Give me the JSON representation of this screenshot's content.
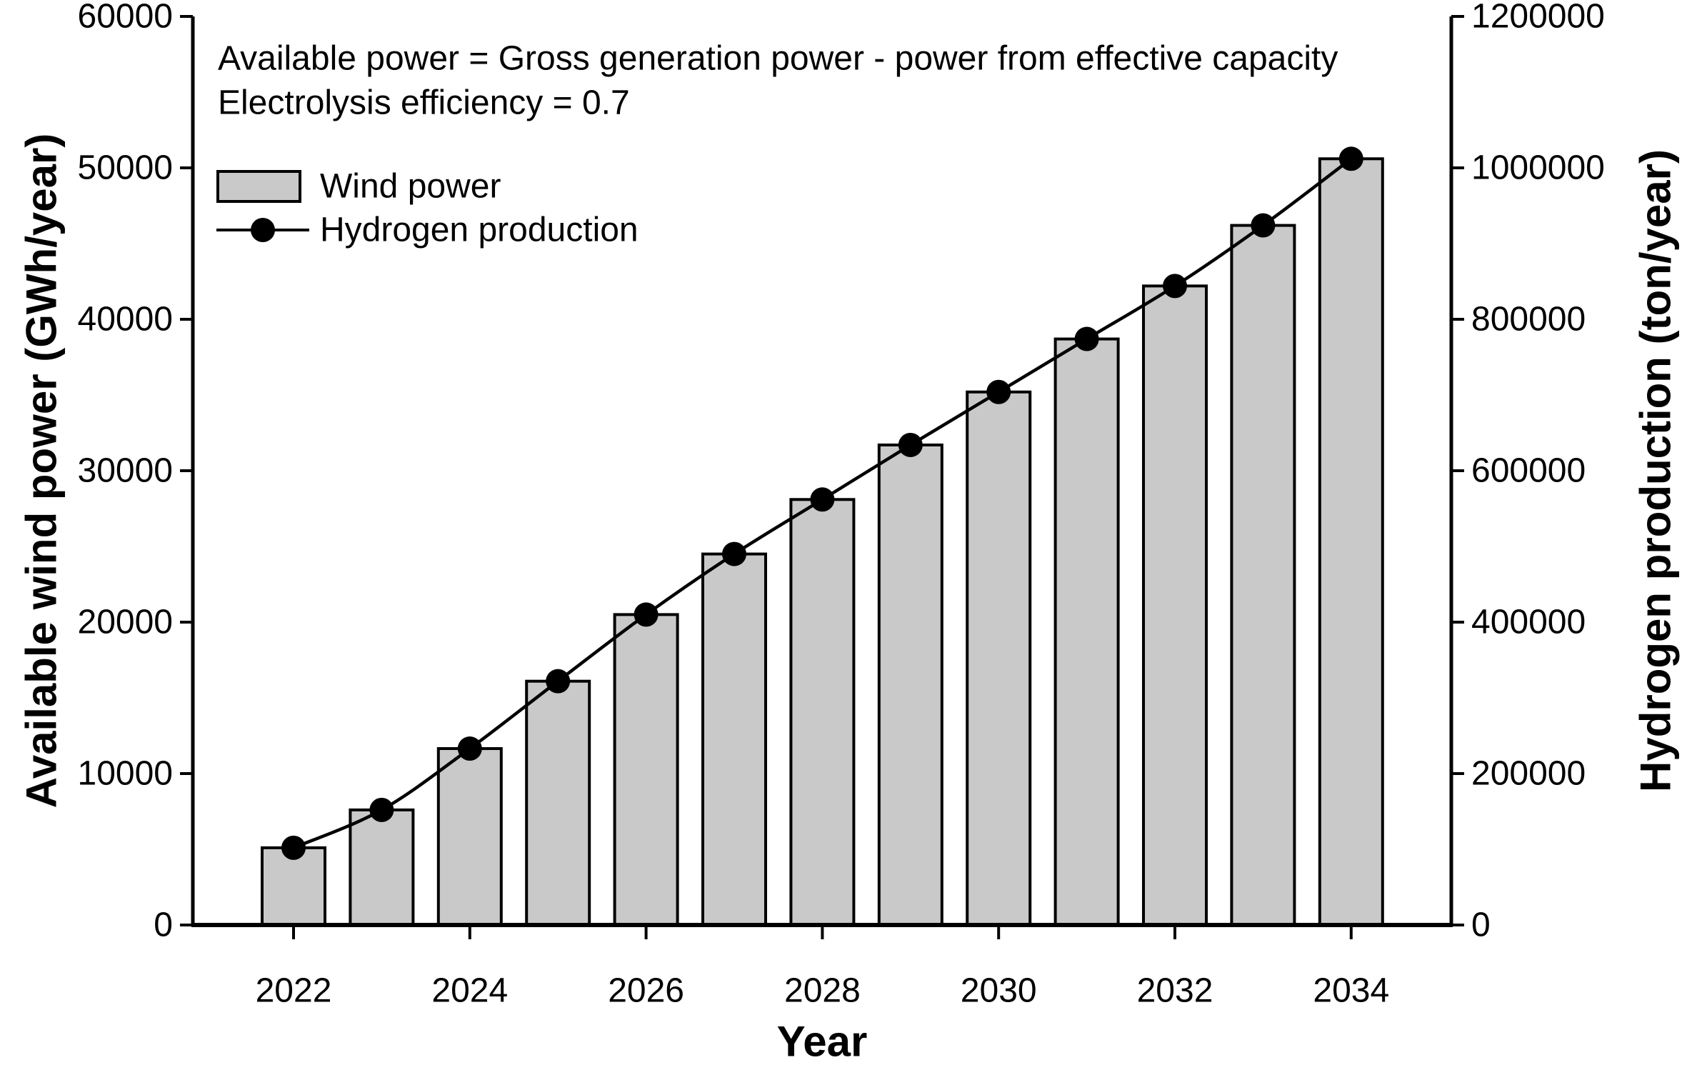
{
  "annotation": {
    "line1": "Available power = Gross generation power - power from effective capacity",
    "line2": "Electrolysis efficiency = 0.7",
    "color": "#ff0000"
  },
  "legend": {
    "items": [
      {
        "label": "Wind power",
        "marker": "bar-swatch"
      },
      {
        "label": "Hydrogen production",
        "marker": "line-dot"
      }
    ]
  },
  "chart_data": {
    "type": "bar",
    "title": "",
    "xlabel": "Year",
    "ylabel_left": "Available wind power (GWh/year)",
    "ylabel_right": "Hydrogen production (ton/year)",
    "x": [
      2022,
      2023,
      2024,
      2025,
      2026,
      2027,
      2028,
      2029,
      2030,
      2031,
      2032,
      2033,
      2034
    ],
    "series": [
      {
        "name": "Wind power",
        "type": "bar",
        "axis": "left",
        "values": [
          5100,
          7600,
          11650,
          16100,
          20500,
          24500,
          28100,
          31700,
          35200,
          38700,
          42200,
          46200,
          50600
        ]
      },
      {
        "name": "Hydrogen production",
        "type": "line",
        "axis": "right",
        "values": [
          102000,
          152000,
          233000,
          322000,
          410000,
          490000,
          562000,
          634000,
          704000,
          774000,
          844000,
          924000,
          1012000
        ]
      }
    ],
    "ylim_left": [
      0,
      60000
    ],
    "ylim_right": [
      0,
      1200000
    ],
    "yticks_left": [
      0,
      10000,
      20000,
      30000,
      40000,
      50000,
      60000
    ],
    "yticks_right": [
      0,
      200000,
      400000,
      600000,
      800000,
      1000000,
      1200000
    ],
    "xticks": [
      2022,
      2024,
      2026,
      2028,
      2030,
      2032,
      2034
    ],
    "grid": false,
    "legend_position": "upper-left",
    "bar_color": "#c9c9c9",
    "bar_border_color": "#000000",
    "line_color": "#000000",
    "marker_color": "#000000",
    "axis_color": "#000000"
  }
}
